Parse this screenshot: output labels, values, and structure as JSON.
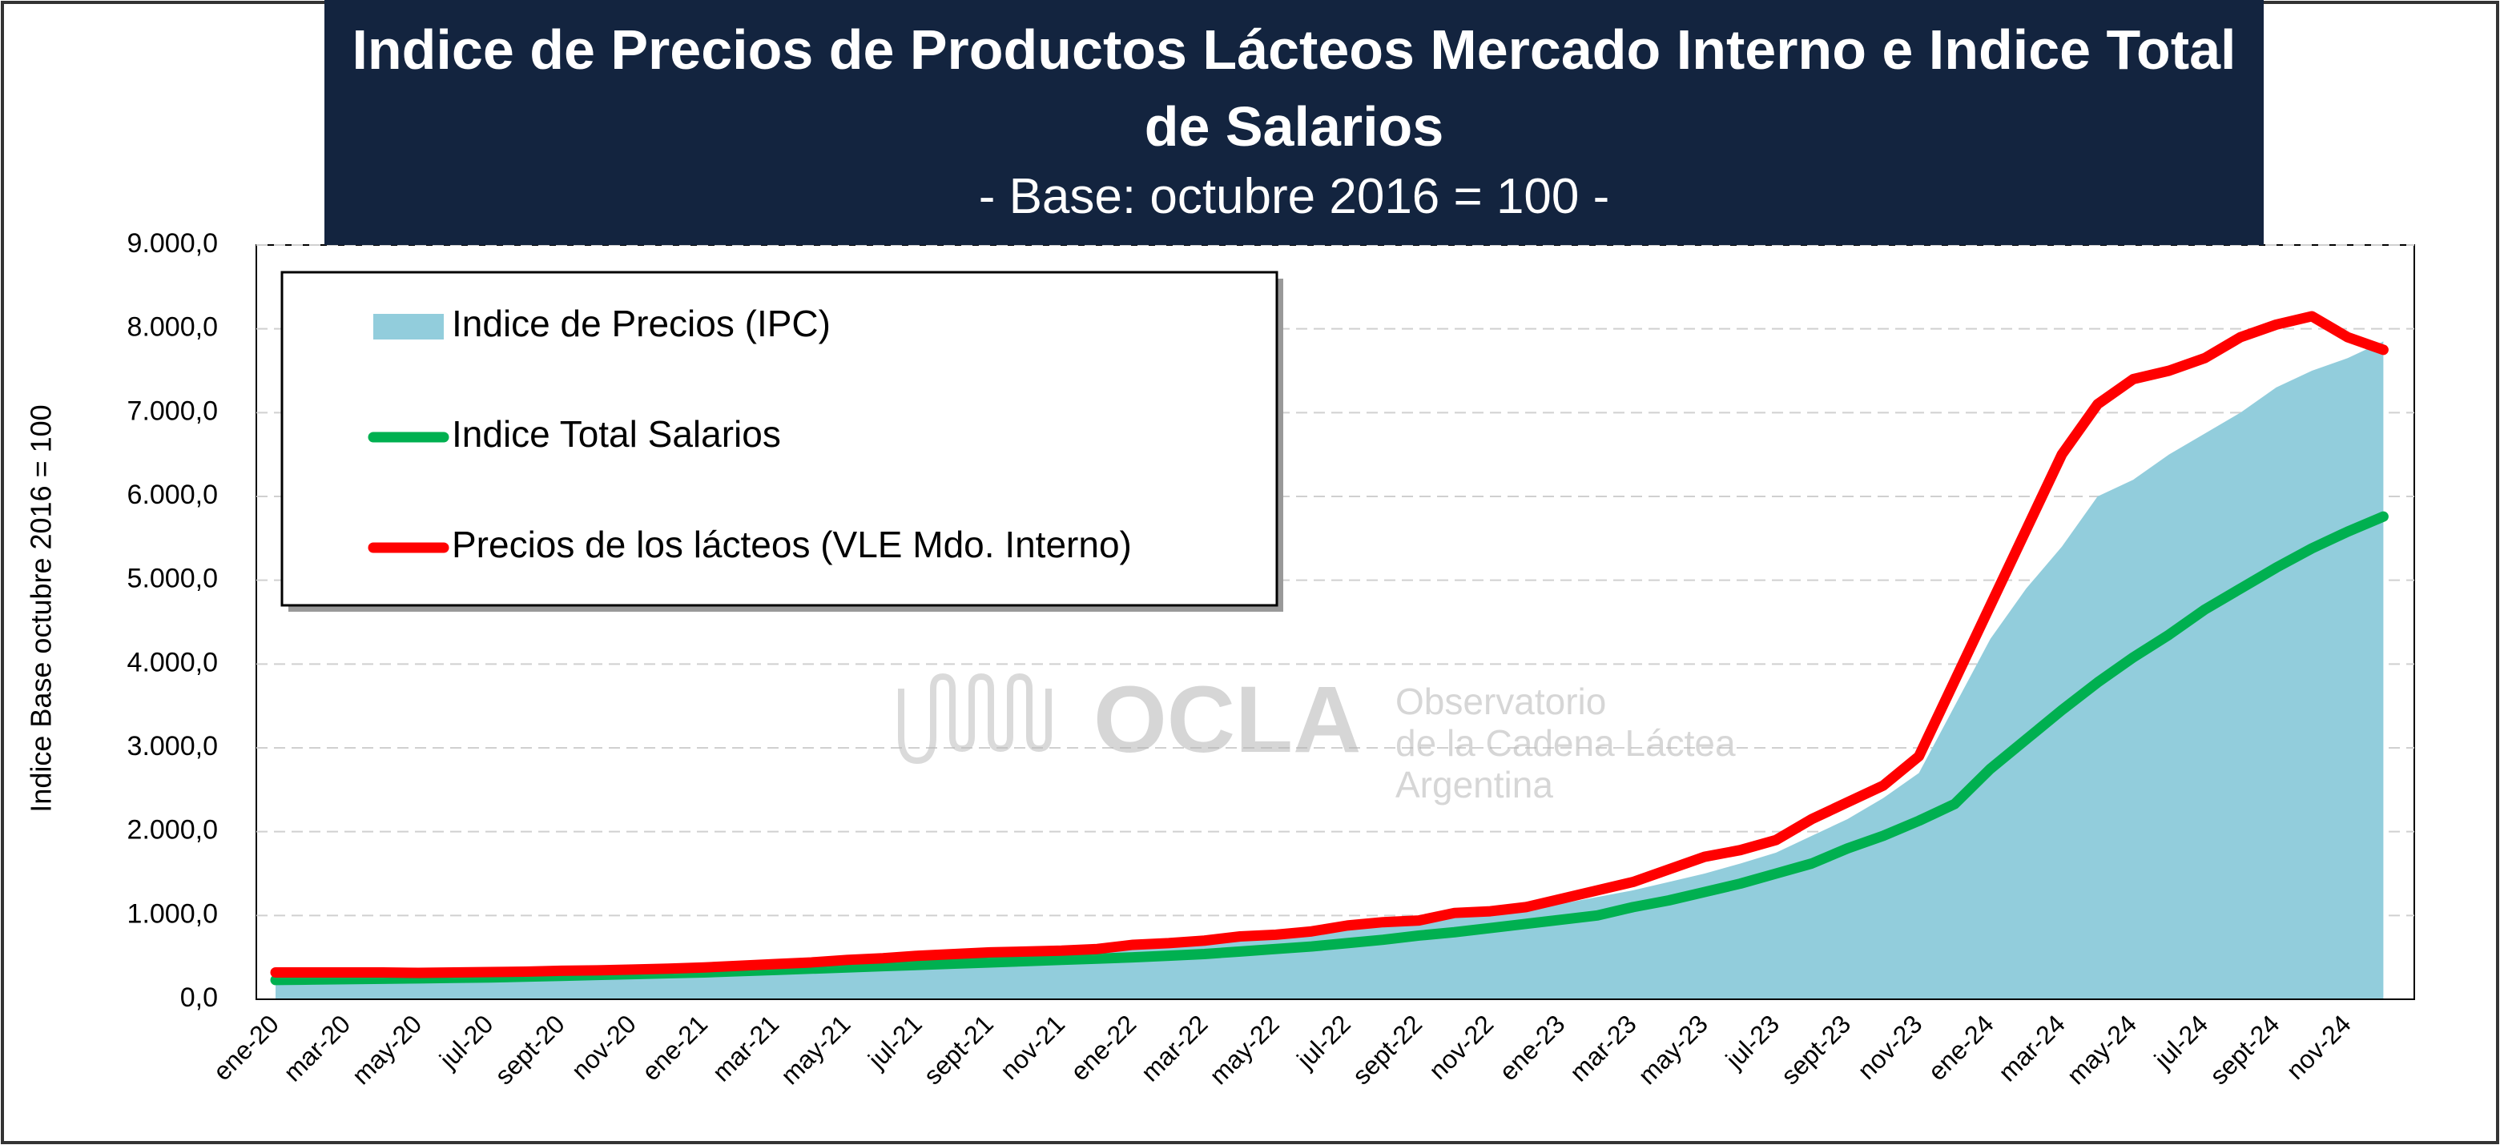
{
  "chart_data": {
    "type": "line",
    "title": "Indice de Precios de Productos Lácteos Mercado Interno e Indice Total de Salarios",
    "subtitle": "- Base: octubre 2016 = 100 -",
    "y_label": "Indice Base octubre 2016 = 100",
    "watermark": {
      "logo": "OCLA",
      "line1": "Observatorio",
      "line2": "de la Cadena Láctea",
      "line3": "Argentina"
    },
    "legend": "upper left",
    "grid": true,
    "ylim": [
      0,
      9000
    ],
    "yticks": [
      {
        "value": 0,
        "label": "0,0"
      },
      {
        "value": 1000,
        "label": "1.000,0"
      },
      {
        "value": 2000,
        "label": "2.000,0"
      },
      {
        "value": 3000,
        "label": "3.000,0"
      },
      {
        "value": 4000,
        "label": "4.000,0"
      },
      {
        "value": 5000,
        "label": "5.000,0"
      },
      {
        "value": 6000,
        "label": "6.000,0"
      },
      {
        "value": 7000,
        "label": "7.000,0"
      },
      {
        "value": 8000,
        "label": "8.000,0"
      },
      {
        "value": 9000,
        "label": "9.000,0"
      }
    ],
    "categories": [
      "ene-20",
      null,
      "mar-20",
      null,
      "may-20",
      null,
      "jul-20",
      null,
      "sept-20",
      null,
      "nov-20",
      null,
      "ene-21",
      null,
      "mar-21",
      null,
      "may-21",
      null,
      "jul-21",
      null,
      "sept-21",
      null,
      "nov-21",
      null,
      "ene-22",
      null,
      "mar-22",
      null,
      "may-22",
      null,
      "jul-22",
      null,
      "sept-22",
      null,
      "nov-22",
      null,
      "ene-23",
      null,
      "mar-23",
      null,
      "may-23",
      null,
      "jul-23",
      null,
      "sept-23",
      null,
      "nov-23",
      null,
      "ene-24",
      null,
      "mar-24",
      null,
      "may-24",
      null,
      "jul-24",
      null,
      "sept-24",
      null,
      "nov-24",
      null
    ],
    "series": [
      {
        "name": "Indice de Precios (IPC)",
        "style": "area",
        "color": "#92cddc",
        "values": [
          280,
          285,
          290,
          295,
          300,
          305,
          310,
          320,
          330,
          340,
          350,
          365,
          380,
          395,
          410,
          430,
          450,
          465,
          480,
          495,
          510,
          525,
          545,
          565,
          590,
          620,
          660,
          700,
          740,
          780,
          820,
          870,
          920,
          980,
          1030,
          1080,
          1140,
          1220,
          1300,
          1400,
          1500,
          1620,
          1750,
          1950,
          2150,
          2400,
          2700,
          3500,
          4300,
          4900,
          5400,
          6000,
          6200,
          6500,
          6750,
          7000,
          7300,
          7500,
          7650,
          7850
        ]
      },
      {
        "name": "Indice Total Salarios",
        "style": "line",
        "color": "#00b050",
        "values": [
          230,
          235,
          240,
          245,
          250,
          255,
          260,
          270,
          280,
          290,
          300,
          310,
          320,
          335,
          350,
          365,
          380,
          395,
          410,
          425,
          440,
          455,
          470,
          485,
          500,
          520,
          540,
          570,
          600,
          630,
          670,
          710,
          760,
          800,
          850,
          900,
          950,
          1000,
          1100,
          1180,
          1280,
          1380,
          1500,
          1620,
          1800,
          1950,
          2130,
          2330,
          2750,
          3100,
          3450,
          3780,
          4080,
          4350,
          4650,
          4900,
          5150,
          5380,
          5580,
          5760
        ]
      },
      {
        "name": "Precios de los lácteos (VLE Mdo. Interno)",
        "style": "line",
        "color": "#ff0000",
        "values": [
          320,
          320,
          320,
          320,
          315,
          320,
          325,
          330,
          340,
          345,
          355,
          365,
          380,
          400,
          420,
          440,
          470,
          490,
          520,
          540,
          560,
          570,
          580,
          600,
          650,
          670,
          700,
          750,
          770,
          810,
          880,
          920,
          940,
          1030,
          1050,
          1100,
          1200,
          1300,
          1400,
          1550,
          1700,
          1780,
          1900,
          2150,
          2350,
          2550,
          2900,
          3800,
          4700,
          5600,
          6500,
          7100,
          7400,
          7500,
          7650,
          7900,
          8050,
          8150,
          7900,
          7750
        ]
      }
    ]
  }
}
